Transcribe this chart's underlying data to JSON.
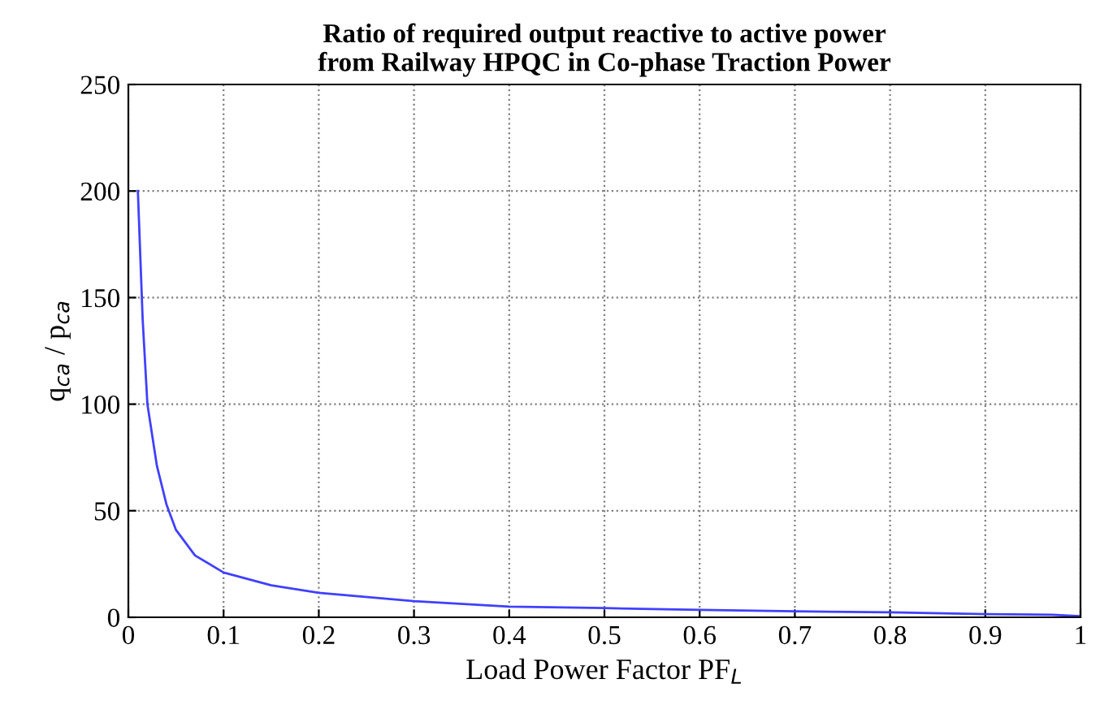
{
  "chart_data": {
    "type": "line",
    "title": "Ratio of required output reactive to active power\nfrom Railway HPQC in Co-phase Traction Power",
    "xlabel": "Load Power Factor PF$_{L}$",
    "ylabel": "q$_{ca}$ / p$_{ca}$",
    "x": [
      0.01,
      0.015,
      0.02,
      0.03,
      0.04,
      0.05,
      0.07,
      0.1,
      0.15,
      0.2,
      0.3,
      0.4,
      0.5,
      0.6,
      0.7,
      0.8,
      0.9,
      0.97,
      1.0
    ],
    "series": [
      {
        "color": "#4040ff",
        "values": [
          200,
          140,
          100,
          71,
          53,
          41,
          29,
          21,
          15,
          11.5,
          7.6,
          5,
          4.3,
          3.5,
          2.8,
          2.3,
          1.5,
          1.2,
          0.5
        ]
      }
    ],
    "xlim": [
      0,
      1
    ],
    "xticks": [
      0,
      0.1,
      0.2,
      0.3,
      0.4,
      0.5,
      0.6,
      0.7,
      0.8,
      0.9,
      1
    ],
    "ylim": [
      0,
      250
    ],
    "yticks": [
      0,
      50,
      100,
      150,
      200,
      250
    ],
    "grid": true,
    "line_style": "solid",
    "marker": "none"
  }
}
